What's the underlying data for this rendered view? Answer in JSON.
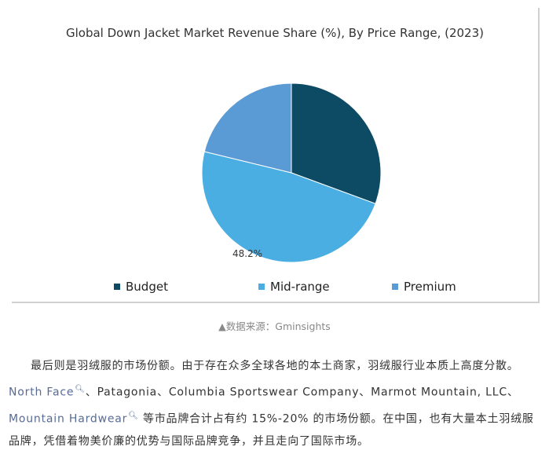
{
  "chart_data": {
    "type": "pie",
    "title": "Global Down Jacket Market Revenue Share (%), By Price Range, (2023)",
    "categories": [
      "Budget",
      "Mid-range",
      "Premium"
    ],
    "values": [
      30.6,
      48.2,
      21.2
    ],
    "data_labels": [
      "",
      "48.2%",
      ""
    ],
    "colors": [
      "#0d4a63",
      "#4aaee3",
      "#5b9bd5"
    ],
    "legend_position": "bottom"
  },
  "source": "▲数据来源：Gminsights",
  "article": {
    "line1": "最后则是羽绒服的市场份额。由于存在众多全球各地的本土商家，羽绒服行业本质上高度分散。",
    "link1": "North Face",
    "line2_rest": "、Patagonia、Columbia Sportswear Company、Marmot Mountain, LLC、",
    "link2": "Mountain Hardwear",
    "line3_rest": " 等市品牌合计占有约 15%-20% 的市场份额。在中国，也有大量本土羽绒服",
    "line4": "品牌，凭借着物美价廉的优势与国际品牌竞争，并且走向了国际市场。"
  },
  "icons": {
    "link_search": "search-icon"
  }
}
